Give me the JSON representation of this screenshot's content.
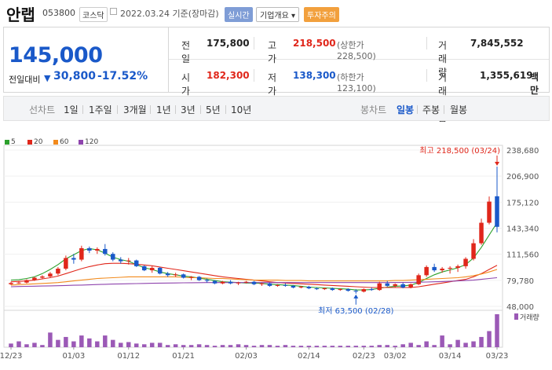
{
  "header": {
    "stock_name": "안랩",
    "stock_code": "053800",
    "market_badge": "코스닥",
    "date_text": "2022.03.24  기준(장마감)",
    "realtime_label": "실시간",
    "company_info_label": "기업개요",
    "warning_label": "투자주의"
  },
  "summary": {
    "current_price": "145,000",
    "change_label": "전일대비",
    "change_value": "30,800",
    "change_pct": "-17.52%",
    "prev_close_label": "전일",
    "prev_close": "175,800",
    "high_label": "고가",
    "high": "218,500",
    "upper_limit": "(상한가 228,500)",
    "volume_label": "거래량",
    "volume": "7,845,552",
    "open_label": "시가",
    "open": "182,300",
    "low_label": "저가",
    "low": "138,300",
    "lower_limit": "(하한가 123,100)",
    "amount_label": "거래대금",
    "amount": "1,355,619",
    "amount_unit": "백만"
  },
  "tabs": {
    "line_chart": "선차트",
    "d1": "1일",
    "w1": "1주일",
    "m3": "3개월",
    "y1": "1년",
    "y3": "3년",
    "y5": "5년",
    "y10": "10년",
    "candle_chart": "봉차트",
    "daily": "일봉",
    "weekly": "주봉",
    "monthly": "월봉"
  },
  "colors": {
    "up": "#e0271b",
    "down": "#1a59c9",
    "ma5": "#2ca02c",
    "ma20": "#e0271b",
    "ma60": "#f28a1c",
    "ma120": "#8e44ad"
  },
  "chart_data": {
    "type": "candlestick",
    "legend": [
      "5",
      "20",
      "60",
      "120"
    ],
    "y_ticks": [
      "238,680",
      "206,900",
      "175,120",
      "143,340",
      "111,560",
      "79,780",
      "48,000"
    ],
    "y_range": [
      48000,
      238680
    ],
    "x_ticks": [
      "12/23",
      "01/03",
      "01/12",
      "01/21",
      "02/03",
      "02/14",
      "02/23",
      "03/02",
      "03/14",
      "03/23"
    ],
    "high_annotation": "최고 218,500 (03/24)",
    "low_annotation": "최저 63,500 (02/28)",
    "volume_label": "거래량",
    "candles": [
      [
        75000,
        78000,
        74000,
        76500
      ],
      [
        76500,
        79000,
        75500,
        77000
      ],
      [
        77000,
        81000,
        76000,
        80000
      ],
      [
        80000,
        84000,
        79000,
        83000
      ],
      [
        83000,
        86000,
        81000,
        84500
      ],
      [
        84500,
        90000,
        83000,
        88000
      ],
      [
        88000,
        96000,
        86000,
        94000
      ],
      [
        94000,
        110000,
        92000,
        107000
      ],
      [
        107000,
        112000,
        100000,
        105000
      ],
      [
        105000,
        122000,
        103000,
        119000
      ],
      [
        119000,
        121000,
        113000,
        116000
      ],
      [
        116000,
        120000,
        112000,
        118000
      ],
      [
        118000,
        124000,
        110000,
        112000
      ],
      [
        112000,
        114000,
        103000,
        105000
      ],
      [
        105000,
        108000,
        100000,
        103000
      ],
      [
        103000,
        107000,
        99000,
        104000
      ],
      [
        104000,
        105000,
        96000,
        97000
      ],
      [
        97000,
        98000,
        91000,
        92000
      ],
      [
        92000,
        97000,
        89000,
        95000
      ],
      [
        95000,
        96000,
        87000,
        88000
      ],
      [
        88000,
        90000,
        84000,
        86000
      ],
      [
        86000,
        89000,
        84000,
        87000
      ],
      [
        87000,
        88000,
        82000,
        83000
      ],
      [
        83000,
        85000,
        80000,
        84000
      ],
      [
        84000,
        85000,
        79000,
        80000
      ],
      [
        80000,
        82000,
        77000,
        79000
      ],
      [
        79000,
        80000,
        75000,
        76000
      ],
      [
        76000,
        79000,
        75000,
        78000
      ],
      [
        78000,
        80000,
        75000,
        76000
      ],
      [
        76000,
        78000,
        74000,
        77000
      ],
      [
        77000,
        79000,
        76000,
        78000
      ],
      [
        78000,
        79000,
        74000,
        75000
      ],
      [
        75000,
        77000,
        73000,
        76000
      ],
      [
        76000,
        77000,
        72000,
        73000
      ],
      [
        73000,
        75000,
        72000,
        74000
      ],
      [
        74000,
        76000,
        72000,
        73000
      ],
      [
        73000,
        74000,
        70000,
        71000
      ],
      [
        71000,
        73000,
        70000,
        72000
      ],
      [
        72000,
        73000,
        69000,
        70000
      ],
      [
        70000,
        71000,
        68000,
        69000
      ],
      [
        69000,
        71000,
        68000,
        70000
      ],
      [
        70000,
        71000,
        67000,
        68000
      ],
      [
        68000,
        70000,
        67000,
        69000
      ],
      [
        69000,
        70000,
        66000,
        67000
      ],
      [
        67000,
        69000,
        63500,
        66000
      ],
      [
        66000,
        70000,
        65000,
        69000
      ],
      [
        69000,
        71000,
        67000,
        68000
      ],
      [
        68000,
        78000,
        67000,
        76000
      ],
      [
        76000,
        79000,
        72000,
        73000
      ],
      [
        73000,
        76000,
        71000,
        75000
      ],
      [
        75000,
        77000,
        70000,
        71000
      ],
      [
        71000,
        76000,
        70000,
        75000
      ],
      [
        75000,
        88000,
        74000,
        86000
      ],
      [
        86000,
        98000,
        84000,
        96000
      ],
      [
        96000,
        100000,
        90000,
        92000
      ],
      [
        92000,
        96000,
        89000,
        94000
      ],
      [
        94000,
        97000,
        88000,
        95000
      ],
      [
        95000,
        99000,
        90000,
        97000
      ],
      [
        97000,
        108000,
        94000,
        106000
      ],
      [
        106000,
        130000,
        104000,
        125000
      ],
      [
        125000,
        155000,
        123000,
        150000
      ],
      [
        150000,
        182000,
        148000,
        175800
      ],
      [
        182300,
        218500,
        138300,
        145000
      ]
    ],
    "ma": {
      "5": [
        80000,
        80500,
        82000,
        84000,
        88000,
        93000,
        99000,
        106000,
        111000,
        116000,
        118500,
        117000,
        113000,
        108000,
        105000,
        103000,
        99000,
        95000,
        93000,
        90000,
        88000,
        86500,
        85000,
        84000,
        82500,
        81000,
        79500,
        78000,
        77500,
        77000,
        76500,
        76500,
        76000,
        75000,
        74500,
        74000,
        73500,
        72500,
        71500,
        71000,
        70500,
        70000,
        69500,
        69000,
        68000,
        68000,
        68500,
        70000,
        71500,
        72500,
        73000,
        74000,
        77000,
        82000,
        86500,
        90000,
        92500,
        95000,
        99000,
        107000,
        120000,
        135000,
        150000
      ],
      "20": [
        78000,
        78500,
        79000,
        80000,
        81500,
        83000,
        85000,
        88000,
        91000,
        94000,
        96500,
        98500,
        100000,
        100500,
        100500,
        100000,
        99500,
        98500,
        97500,
        96000,
        94500,
        93000,
        91500,
        90000,
        88500,
        87000,
        85500,
        84000,
        83000,
        82000,
        81000,
        80000,
        79000,
        78000,
        77000,
        76500,
        76000,
        75500,
        75000,
        74500,
        74000,
        73500,
        73000,
        72500,
        72000,
        71500,
        71000,
        71000,
        71000,
        71000,
        71000,
        71000,
        72000,
        73500,
        75000,
        76500,
        78000,
        79500,
        81000,
        84000,
        88000,
        93000,
        98000
      ],
      "60": [
        74000,
        74500,
        75000,
        75500,
        76000,
        76500,
        77000,
        78000,
        79000,
        80000,
        81000,
        82000,
        82500,
        83000,
        83500,
        84000,
        84000,
        84000,
        84000,
        84000,
        84000,
        84000,
        83500,
        83000,
        83000,
        82500,
        82000,
        82000,
        81500,
        81000,
        80500,
        80000,
        80000,
        80000,
        80000,
        79500,
        79500,
        79500,
        79000,
        79000,
        79000,
        79000,
        79000,
        79000,
        79000,
        79000,
        79000,
        79000,
        79000,
        79500,
        79500,
        80000,
        80500,
        81000,
        81500,
        82000,
        82500,
        83000,
        84000,
        85500,
        87500,
        90000,
        93000
      ],
      "120": [
        72000,
        72200,
        72400,
        72600,
        72800,
        73000,
        73200,
        73500,
        73800,
        74000,
        74300,
        74600,
        74900,
        75200,
        75400,
        75600,
        75800,
        76000,
        76200,
        76400,
        76500,
        76600,
        76700,
        76800,
        76900,
        77000,
        77000,
        77000,
        77000,
        77000,
        77000,
        77000,
        77000,
        77000,
        77000,
        77000,
        77000,
        77000,
        77000,
        77000,
        77000,
        77000,
        77000,
        77000,
        77000,
        77000,
        77000,
        77000,
        77000,
        77100,
        77200,
        77300,
        77500,
        77700,
        78000,
        78300,
        78600,
        79000,
        79500,
        80000,
        81000,
        82000,
        83000
      ]
    },
    "volumes": [
      5,
      8,
      4,
      6,
      3,
      20,
      10,
      14,
      8,
      16,
      12,
      8,
      16,
      10,
      6,
      7,
      5,
      4,
      6,
      6,
      3,
      4,
      3,
      3,
      4,
      3,
      2,
      3,
      3,
      4,
      3,
      2,
      3,
      3,
      2,
      3,
      2,
      2,
      2,
      2,
      2,
      2,
      2,
      2,
      2,
      2,
      2,
      3,
      3,
      2,
      4,
      6,
      3,
      8,
      3,
      16,
      4,
      10,
      6,
      8,
      14,
      22,
      45
    ]
  }
}
